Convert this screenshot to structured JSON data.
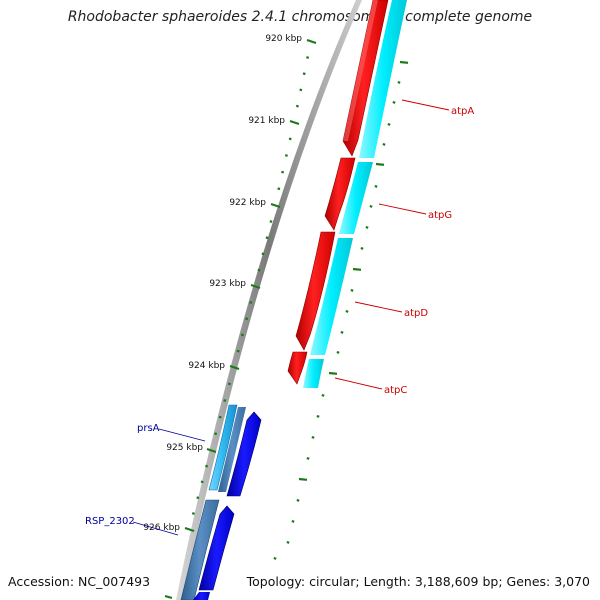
{
  "title": "Rhodobacter sphaeroides 2.4.1 chromosome 1, complete genome",
  "accession_label": "Accession: NC_007493",
  "summary": "Topology: circular; Length: 3,188,609 bp; Genes: 3,070",
  "colors": {
    "backbone": "#8c8c8c",
    "tick": "#1a7a1a",
    "atp_gene": "#ff0000",
    "atp_cds": "#00e5ee",
    "rsp_gene": "#0000ee",
    "rsp_cds": "#4a7fb8",
    "prsa_cds": "#33bbee",
    "red_label": "#cc0000",
    "blue_label": "#000099"
  },
  "ticks": [
    {
      "label": "920 kbp"
    },
    {
      "label": "921 kbp"
    },
    {
      "label": "922 kbp"
    },
    {
      "label": "923 kbp"
    },
    {
      "label": "924 kbp"
    },
    {
      "label": "925 kbp"
    },
    {
      "label": "926 kbp"
    }
  ],
  "genes": [
    {
      "name": "atpA",
      "color": "red"
    },
    {
      "name": "atpG",
      "color": "red"
    },
    {
      "name": "atpD",
      "color": "red"
    },
    {
      "name": "atpC",
      "color": "red"
    },
    {
      "name": "prsA",
      "color": "blue"
    },
    {
      "name": "RSP_2302",
      "color": "blue"
    }
  ]
}
